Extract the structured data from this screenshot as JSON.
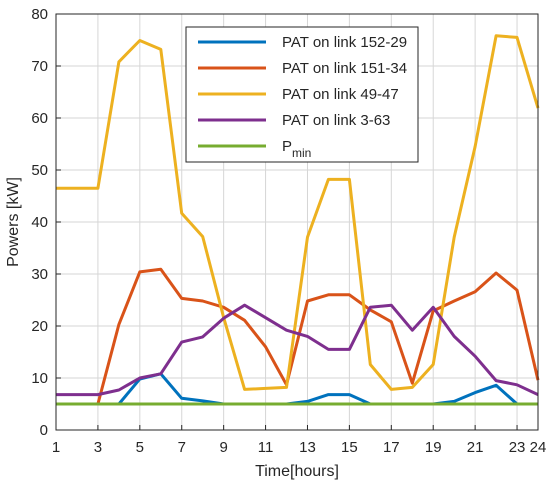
{
  "chart_data": {
    "type": "line",
    "title": "",
    "xlabel": "Time[hours]",
    "ylabel": "Powers [kW]",
    "xlim": [
      1,
      24
    ],
    "ylim": [
      0,
      80
    ],
    "grid": true,
    "legend_position": "top-center",
    "x_ticks": [
      1,
      3,
      5,
      7,
      9,
      11,
      13,
      15,
      17,
      19,
      21,
      23,
      24
    ],
    "y_ticks": [
      0,
      10,
      20,
      30,
      40,
      50,
      60,
      70,
      80
    ],
    "x": [
      1,
      2,
      3,
      4,
      5,
      6,
      7,
      8,
      9,
      10,
      11,
      12,
      13,
      14,
      15,
      16,
      17,
      18,
      19,
      20,
      21,
      22,
      23,
      24
    ],
    "series": [
      {
        "name": "PAT on link 152-29",
        "color": "#0072BD",
        "values": [
          5,
          5,
          5,
          5,
          9.8,
          10.8,
          6.1,
          5.6,
          5,
          5,
          5,
          5,
          5.5,
          6.8,
          6.8,
          5,
          5,
          5,
          5,
          5.5,
          7.2,
          8.6,
          5,
          5
        ]
      },
      {
        "name": "PAT on link 151-34",
        "color": "#D95319",
        "values": [
          5,
          5,
          5,
          20.3,
          30.4,
          30.9,
          25.3,
          24.8,
          23.6,
          21.1,
          16,
          8.7,
          24.8,
          26,
          26,
          23.1,
          20.8,
          9,
          22.9,
          24.8,
          26.6,
          30.2,
          26.9,
          9.6
        ]
      },
      {
        "name": "PAT on link 49-47",
        "color": "#EDB120",
        "values": [
          46.5,
          46.5,
          46.5,
          70.8,
          74.9,
          73.2,
          41.7,
          37.2,
          21.6,
          7.8,
          8,
          8.2,
          37.1,
          48.2,
          48.2,
          12.6,
          7.8,
          8.2,
          12.6,
          37.1,
          54.5,
          75.8,
          75.5,
          61.9
        ]
      },
      {
        "name": "PAT on link 3-63",
        "color": "#7E2F8E",
        "values": [
          6.8,
          6.8,
          6.8,
          7.7,
          10,
          10.8,
          16.9,
          17.9,
          21.5,
          24,
          21.6,
          19.2,
          18,
          15.5,
          15.5,
          23.6,
          24,
          19.2,
          23.6,
          18,
          14.2,
          9.5,
          8.7,
          6.8
        ]
      },
      {
        "name": "P",
        "subscript": "min",
        "color": "#77AC30",
        "values": [
          5,
          5,
          5,
          5,
          5,
          5,
          5,
          5,
          5,
          5,
          5,
          5,
          5,
          5,
          5,
          5,
          5,
          5,
          5,
          5,
          5,
          5,
          5,
          5
        ]
      }
    ]
  }
}
